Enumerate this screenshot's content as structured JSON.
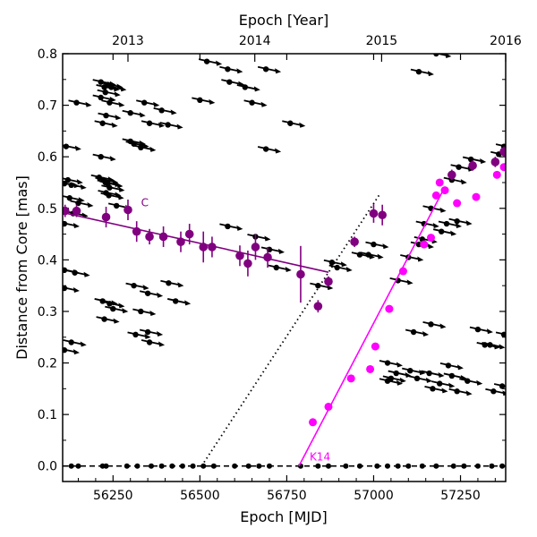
{
  "chart_data": {
    "type": "scatter",
    "xlabel": "Epoch [MJD]",
    "ylabel": "Distance from Core [mas]",
    "top_xlabel": "Epoch [Year]",
    "xlim": [
      56105,
      57380
    ],
    "ylim": [
      -0.03,
      0.8
    ],
    "x_ticks": [
      56250,
      56500,
      56750,
      57000,
      57250
    ],
    "y_ticks": [
      0.0,
      0.1,
      0.2,
      0.3,
      0.4,
      0.5,
      0.6,
      0.7,
      0.8
    ],
    "top_ticks": [
      {
        "label": "2013",
        "mjd": 56293
      },
      {
        "label": "2014",
        "mjd": 56658
      },
      {
        "label": "2015",
        "mjd": 57023
      },
      {
        "label": "2016",
        "mjd": 57388
      }
    ],
    "colors": {
      "C": "#800080",
      "K14": "#ff00ff",
      "other": "#000000"
    },
    "series": [
      {
        "name": "C",
        "label": "C",
        "color": "#800080",
        "points": [
          [
            56112,
            0.495,
            0.012
          ],
          [
            56145,
            0.495,
            0.012
          ],
          [
            56230,
            0.483,
            0.02
          ],
          [
            56293,
            0.497,
            0.02
          ],
          [
            56318,
            0.455,
            0.02
          ],
          [
            56355,
            0.445,
            0.015
          ],
          [
            56395,
            0.445,
            0.02
          ],
          [
            56445,
            0.435,
            0.02
          ],
          [
            56470,
            0.45,
            0.02
          ],
          [
            56510,
            0.425,
            0.03
          ],
          [
            56535,
            0.425,
            0.02
          ],
          [
            56615,
            0.408,
            0.02
          ],
          [
            56638,
            0.393,
            0.025
          ],
          [
            56660,
            0.425,
            0.025
          ],
          [
            56695,
            0.405,
            0.02
          ],
          [
            56790,
            0.372,
            0.055
          ],
          [
            56840,
            0.31,
            0.012
          ],
          [
            56870,
            0.358,
            0.01
          ],
          [
            56945,
            0.435,
            0.01
          ],
          [
            57000,
            0.49,
            0.018
          ],
          [
            57025,
            0.487,
            0.02
          ],
          [
            57225,
            0.565,
            0.01
          ],
          [
            57285,
            0.583,
            0.01
          ],
          [
            57350,
            0.59,
            0.01
          ],
          [
            57375,
            0.61,
            0.01
          ]
        ],
        "fit": {
          "x": [
            56105,
            56870
          ],
          "y": [
            0.492,
            0.376
          ]
        }
      },
      {
        "name": "K14",
        "label": "K14",
        "color": "#ff00ff",
        "points": [
          [
            56825,
            0.085
          ],
          [
            56870,
            0.115
          ],
          [
            56935,
            0.17
          ],
          [
            56990,
            0.188
          ],
          [
            57005,
            0.232
          ],
          [
            57045,
            0.305
          ],
          [
            57085,
            0.378
          ],
          [
            57145,
            0.43
          ],
          [
            57165,
            0.443
          ],
          [
            57180,
            0.525
          ],
          [
            57190,
            0.55
          ],
          [
            57205,
            0.535
          ],
          [
            57240,
            0.51
          ],
          [
            57295,
            0.522
          ],
          [
            57355,
            0.565
          ],
          [
            57375,
            0.58
          ]
        ],
        "fit": {
          "x": [
            56785,
            57200
          ],
          "y": [
            0.0,
            0.535
          ]
        }
      }
    ],
    "zero_line": {
      "x": [
        56105,
        57380
      ],
      "y": [
        0.0,
        0.0
      ],
      "style": "dashed"
    },
    "dotted_line": {
      "x": [
        56505,
        57020
      ],
      "y": [
        0.0,
        0.53
      ]
    },
    "baseline_points": [
      56130,
      56150,
      56220,
      56230,
      56290,
      56320,
      56360,
      56390,
      56420,
      56450,
      56480,
      56510,
      56540,
      56600,
      56640,
      56670,
      56700,
      56790,
      56840,
      56870,
      56920,
      56960,
      57010,
      57040,
      57070,
      57100,
      57140,
      57180,
      57230,
      57260,
      57300,
      57340,
      57370
    ],
    "other_components": [
      [
        56115,
        0.62
      ],
      [
        56125,
        0.52
      ],
      [
        56135,
        0.49
      ],
      [
        56150,
        0.51
      ],
      [
        56110,
        0.47
      ],
      [
        56145,
        0.705
      ],
      [
        56215,
        0.745
      ],
      [
        56225,
        0.735
      ],
      [
        56228,
        0.725
      ],
      [
        56235,
        0.74
      ],
      [
        56245,
        0.735
      ],
      [
        56215,
        0.715
      ],
      [
        56240,
        0.705
      ],
      [
        56300,
        0.685
      ],
      [
        56340,
        0.705
      ],
      [
        56390,
        0.69
      ],
      [
        56355,
        0.665
      ],
      [
        56408,
        0.662
      ],
      [
        56220,
        0.665
      ],
      [
        56230,
        0.68
      ],
      [
        56300,
        0.63
      ],
      [
        56310,
        0.625
      ],
      [
        56330,
        0.618
      ],
      [
        56215,
        0.6
      ],
      [
        56210,
        0.56
      ],
      [
        56222,
        0.555
      ],
      [
        56228,
        0.55
      ],
      [
        56235,
        0.548
      ],
      [
        56240,
        0.54
      ],
      [
        56230,
        0.53
      ],
      [
        56238,
        0.525
      ],
      [
        56260,
        0.505
      ],
      [
        56110,
        0.548
      ],
      [
        56120,
        0.555
      ],
      [
        56130,
        0.545
      ],
      [
        56110,
        0.38
      ],
      [
        56140,
        0.375
      ],
      [
        56110,
        0.345
      ],
      [
        56220,
        0.32
      ],
      [
        56240,
        0.315
      ],
      [
        56250,
        0.305
      ],
      [
        56310,
        0.35
      ],
      [
        56350,
        0.335
      ],
      [
        56330,
        0.3
      ],
      [
        56225,
        0.285
      ],
      [
        56430,
        0.32
      ],
      [
        56410,
        0.355
      ],
      [
        56520,
        0.785
      ],
      [
        56580,
        0.77
      ],
      [
        56500,
        0.71
      ],
      [
        56585,
        0.745
      ],
      [
        56630,
        0.735
      ],
      [
        56690,
        0.77
      ],
      [
        56650,
        0.705
      ],
      [
        56760,
        0.665
      ],
      [
        56690,
        0.615
      ],
      [
        56580,
        0.465
      ],
      [
        56660,
        0.445
      ],
      [
        56700,
        0.42
      ],
      [
        56720,
        0.385
      ],
      [
        56895,
        0.385
      ],
      [
        56880,
        0.395
      ],
      [
        56840,
        0.35
      ],
      [
        56960,
        0.41
      ],
      [
        56985,
        0.41
      ],
      [
        57000,
        0.43
      ],
      [
        57180,
        0.8
      ],
      [
        57130,
        0.765
      ],
      [
        56130,
        0.24
      ],
      [
        56110,
        0.225
      ],
      [
        56350,
        0.26
      ],
      [
        56355,
        0.24
      ],
      [
        56315,
        0.255
      ],
      [
        57115,
        0.26
      ],
      [
        57165,
        0.275
      ],
      [
        57125,
        0.17
      ],
      [
        57160,
        0.18
      ],
      [
        57040,
        0.2
      ],
      [
        57065,
        0.18
      ],
      [
        57105,
        0.185
      ],
      [
        57170,
        0.15
      ],
      [
        57190,
        0.16
      ],
      [
        57215,
        0.195
      ],
      [
        57225,
        0.175
      ],
      [
        57240,
        0.145
      ],
      [
        57270,
        0.165
      ],
      [
        57300,
        0.265
      ],
      [
        57320,
        0.235
      ],
      [
        57335,
        0.235
      ],
      [
        57375,
        0.255
      ],
      [
        57345,
        0.145
      ],
      [
        57370,
        0.155
      ],
      [
        57040,
        0.165
      ],
      [
        57050,
        0.17
      ],
      [
        57070,
        0.36
      ],
      [
        57100,
        0.405
      ],
      [
        57130,
        0.43
      ],
      [
        57145,
        0.47
      ],
      [
        57165,
        0.5
      ],
      [
        57225,
        0.555
      ],
      [
        57245,
        0.58
      ],
      [
        57280,
        0.595
      ],
      [
        57360,
        0.605
      ],
      [
        57375,
        0.62
      ],
      [
        57140,
        0.44
      ],
      [
        57195,
        0.455
      ],
      [
        57210,
        0.47
      ],
      [
        57240,
        0.475
      ]
    ],
    "grid": false,
    "legend": "none"
  }
}
